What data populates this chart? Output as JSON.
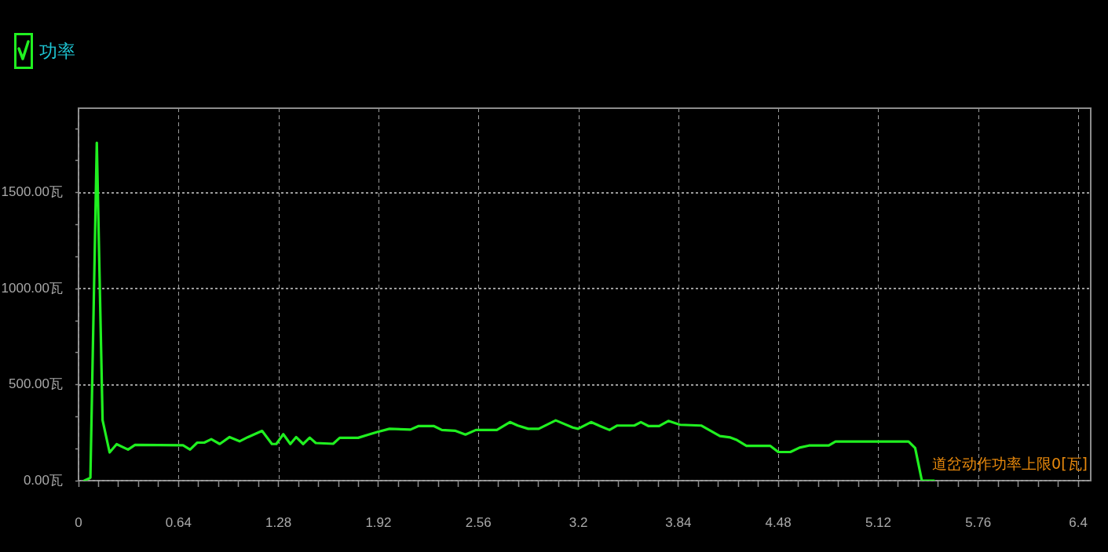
{
  "chart_data": {
    "type": "line",
    "x": [
      0.037,
      0.076,
      0.117,
      0.154,
      0.199,
      0.244,
      0.317,
      0.362,
      0.669,
      0.714,
      0.76,
      0.805,
      0.85,
      0.904,
      0.967,
      1.031,
      1.085,
      1.175,
      1.238,
      1.266,
      1.311,
      1.356,
      1.393,
      1.438,
      1.48,
      1.519,
      1.63,
      1.672,
      1.79,
      1.857,
      1.916,
      1.991,
      2.125,
      2.175,
      2.276,
      2.326,
      2.41,
      2.477,
      2.544,
      2.678,
      2.762,
      2.812,
      2.879,
      2.946,
      3.055,
      3.164,
      3.198,
      3.281,
      3.34,
      3.399,
      3.449,
      3.558,
      3.6,
      3.65,
      3.717,
      3.776,
      3.851,
      3.986,
      4.106,
      4.173,
      4.216,
      4.276,
      4.429,
      4.48,
      4.557,
      4.616,
      4.676,
      4.803,
      4.846,
      5.314,
      5.356,
      5.399,
      5.477
    ],
    "series": [
      {
        "name": "功率",
        "color": "#20f020",
        "values": [
          0,
          15,
          1760,
          315,
          147,
          190,
          162,
          186,
          184,
          162,
          198,
          198,
          216,
          191,
          227,
          205,
          227,
          259,
          191,
          191,
          242,
          191,
          227,
          191,
          224,
          196,
          192,
          223,
          223,
          240,
          254,
          270,
          266,
          284,
          284,
          264,
          260,
          240,
          264,
          264,
          305,
          287,
          270,
          270,
          314,
          277,
          270,
          305,
          284,
          264,
          287,
          287,
          305,
          284,
          284,
          311,
          291,
          287,
          232,
          225,
          211,
          181,
          181,
          149,
          149,
          172,
          183,
          183,
          204,
          204,
          170,
          0,
          0
        ]
      }
    ],
    "xlim": [
      0,
      6.48
    ],
    "xticks": [
      0,
      {
        "value": 0.128,
        "label": null
      },
      {
        "value": 0.256,
        "label": null
      },
      {
        "value": 0.384,
        "label": null
      },
      {
        "value": 0.512,
        "label": null
      },
      0.64,
      {
        "value": 0.768,
        "label": null
      },
      {
        "value": 0.896,
        "label": null
      },
      {
        "value": 1.024,
        "label": null
      },
      {
        "value": 1.152,
        "label": null
      },
      1.28,
      {
        "value": 1.408,
        "label": null
      },
      {
        "value": 1.536,
        "label": null
      },
      {
        "value": 1.664,
        "label": null
      },
      {
        "value": 1.792,
        "label": null
      },
      1.92,
      {
        "value": 2.048,
        "label": null
      },
      {
        "value": 2.176,
        "label": null
      },
      {
        "value": 2.304,
        "label": null
      },
      {
        "value": 2.432,
        "label": null
      },
      2.56,
      {
        "value": 2.688,
        "label": null
      },
      {
        "value": 2.816,
        "label": null
      },
      {
        "value": 2.944,
        "label": null
      },
      {
        "value": 3.072,
        "label": null
      },
      3.2,
      {
        "value": 3.328,
        "label": null
      },
      {
        "value": 3.456,
        "label": null
      },
      {
        "value": 3.584,
        "label": null
      },
      {
        "value": 3.712,
        "label": null
      },
      3.84,
      {
        "value": 3.968,
        "label": null
      },
      {
        "value": 4.096,
        "label": null
      },
      {
        "value": 4.224,
        "label": null
      },
      {
        "value": 4.352,
        "label": null
      },
      4.48,
      {
        "value": 4.608,
        "label": null
      },
      {
        "value": 4.736,
        "label": null
      },
      {
        "value": 4.864,
        "label": null
      },
      {
        "value": 4.992,
        "label": null
      },
      5.12,
      {
        "value": 5.248,
        "label": null
      },
      {
        "value": 5.376,
        "label": null
      },
      {
        "value": 5.504,
        "label": null
      },
      {
        "value": 5.632,
        "label": null
      },
      5.76,
      {
        "value": 5.888,
        "label": null
      },
      {
        "value": 6.016,
        "label": null
      },
      {
        "value": 6.144,
        "label": null
      },
      {
        "value": 6.272,
        "label": null
      },
      6.4
    ],
    "ylim": [
      0,
      1940
    ],
    "yticks": [
      {
        "value": 0,
        "label": "0.00瓦"
      },
      {
        "value": 167,
        "label": null
      },
      {
        "value": 333,
        "label": null
      },
      {
        "value": 500,
        "label": "500.00瓦"
      },
      {
        "value": 667,
        "label": null
      },
      {
        "value": 833,
        "label": null
      },
      {
        "value": 1000,
        "label": "1000.00瓦"
      },
      {
        "value": 1167,
        "label": null
      },
      {
        "value": 1333,
        "label": null
      },
      {
        "value": 1500,
        "label": "1500.00瓦"
      },
      {
        "value": 1667,
        "label": null
      },
      {
        "value": 1833,
        "label": null
      }
    ],
    "grid": true,
    "legend": "top left",
    "marker": "none",
    "line_style": "solid",
    "annotations": [
      "道岔动作功率上限0[瓦]"
    ]
  }
}
